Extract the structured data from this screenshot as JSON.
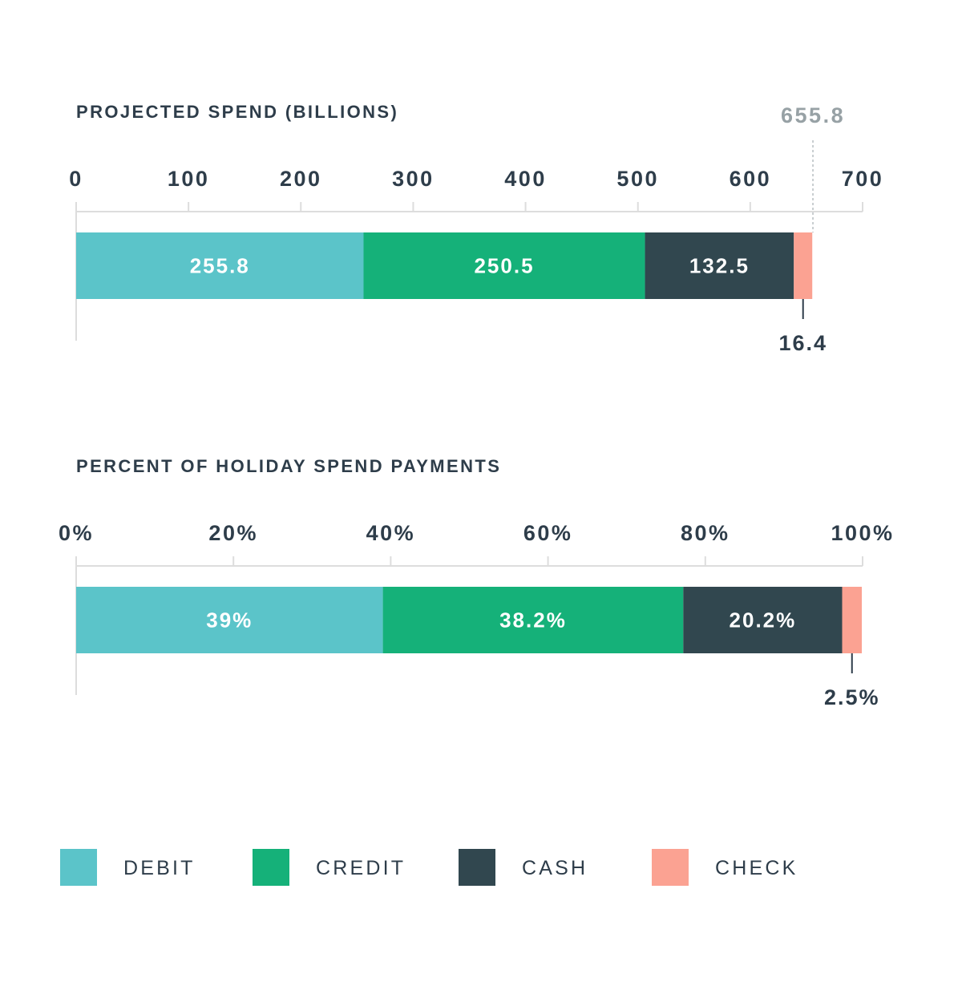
{
  "colors": {
    "Debit": "#5bc4c9",
    "Credit": "#15b179",
    "Cash": "#31474f",
    "Check": "#fba292",
    "text_dark": "#2e3d4a",
    "text_gray": "#97a1a5",
    "axis": "#dddddd"
  },
  "legend": {
    "items": [
      {
        "label": "DEBIT",
        "color_key": "Debit"
      },
      {
        "label": "CREDIT",
        "color_key": "Credit"
      },
      {
        "label": "CASH",
        "color_key": "Cash"
      },
      {
        "label": "CHECK",
        "color_key": "Check"
      }
    ]
  },
  "chart_data": [
    {
      "type": "bar",
      "orientation": "horizontal-stacked",
      "title": "PROJECTED SPEND (BILLIONS)",
      "xlim": [
        0,
        700
      ],
      "ticks": [
        "0",
        "100",
        "200",
        "300",
        "400",
        "500",
        "600",
        "700"
      ],
      "tick_values": [
        0,
        100,
        200,
        300,
        400,
        500,
        600,
        700
      ],
      "total": 655.8,
      "total_label": "655.8",
      "series": [
        {
          "name": "Debit",
          "value": 255.8,
          "label": "255.8"
        },
        {
          "name": "Credit",
          "value": 250.5,
          "label": "250.5"
        },
        {
          "name": "Cash",
          "value": 132.5,
          "label": "132.5"
        },
        {
          "name": "Check",
          "value": 16.4,
          "label": "16.4"
        }
      ]
    },
    {
      "type": "bar",
      "orientation": "horizontal-stacked",
      "title": "PERCENT OF HOLIDAY SPEND PAYMENTS",
      "xlim": [
        0,
        100
      ],
      "ticks": [
        "0%",
        "20%",
        "40%",
        "60%",
        "80%",
        "100%"
      ],
      "tick_values": [
        0,
        20,
        40,
        60,
        80,
        100
      ],
      "series": [
        {
          "name": "Debit",
          "value": 39,
          "label": "39%"
        },
        {
          "name": "Credit",
          "value": 38.2,
          "label": "38.2%"
        },
        {
          "name": "Cash",
          "value": 20.2,
          "label": "20.2%"
        },
        {
          "name": "Check",
          "value": 2.5,
          "label": "2.5%"
        }
      ]
    }
  ]
}
